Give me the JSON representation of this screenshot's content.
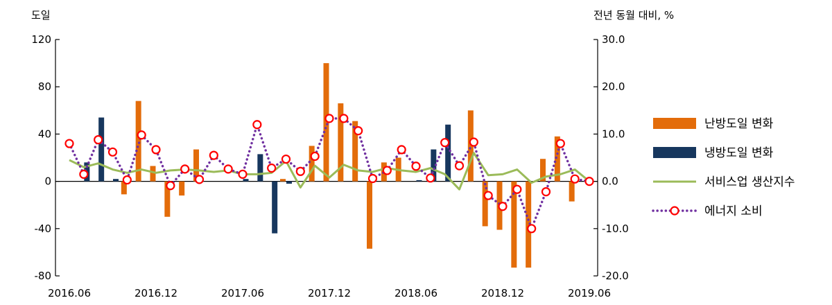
{
  "chart_data": {
    "type": "bar",
    "left_axis_unit": "도일",
    "right_axis_unit": "전년 동월 대비, %",
    "left_ylim": [
      -80,
      120
    ],
    "left_ticks": [
      "120",
      "80",
      "40",
      "0",
      "-40",
      "-80"
    ],
    "left_tick_values": [
      120,
      80,
      40,
      0,
      -40,
      -80
    ],
    "right_ylim": [
      -20,
      30
    ],
    "right_ticks": [
      "30.0",
      "20.0",
      "10.0",
      "0.0",
      "-10.0",
      "-20.0"
    ],
    "right_tick_values": [
      30,
      20,
      10,
      0,
      -10,
      -20
    ],
    "x_labels": [
      "2016.06",
      "2016.12",
      "2017.06",
      "2017.12",
      "2018.06",
      "2018.12",
      "2019.06"
    ],
    "x_label_index": [
      0,
      6,
      12,
      18,
      24,
      30,
      36
    ],
    "categories": [
      "2016.06",
      "2016.07",
      "2016.08",
      "2016.09",
      "2016.10",
      "2016.11",
      "2016.12",
      "2017.01",
      "2017.02",
      "2017.03",
      "2017.04",
      "2017.05",
      "2017.06",
      "2017.07",
      "2017.08",
      "2017.09",
      "2017.10",
      "2017.11",
      "2017.12",
      "2018.01",
      "2018.02",
      "2018.03",
      "2018.04",
      "2018.05",
      "2018.06",
      "2018.07",
      "2018.08",
      "2018.09",
      "2018.10",
      "2018.11",
      "2018.12",
      "2019.01",
      "2019.02",
      "2019.03",
      "2019.04",
      "2019.05",
      "2019.06"
    ],
    "series": [
      {
        "name": "난방도일 변화",
        "axis": "left",
        "kind": "bar",
        "color": "#E36C0A",
        "values": [
          0,
          0,
          0,
          0,
          -11,
          68,
          13,
          -30,
          -12,
          27,
          0,
          0,
          0,
          0,
          0,
          2,
          0,
          30,
          100,
          66,
          51,
          -57,
          16,
          20,
          0,
          0,
          0,
          0,
          60,
          -38,
          -41,
          -73,
          -73,
          19,
          38,
          -17,
          0
        ]
      },
      {
        "name": "냉방도일 변화",
        "axis": "left",
        "kind": "bar",
        "color": "#17375E",
        "values": [
          0,
          16,
          54,
          2,
          0,
          0,
          0,
          0,
          0,
          0,
          0,
          0,
          2,
          23,
          -44,
          -2,
          0,
          0,
          0,
          0,
          0,
          0,
          0,
          0,
          1,
          27,
          48,
          0,
          0,
          0,
          0,
          0,
          0,
          0,
          0,
          0,
          0
        ]
      },
      {
        "name": "서비스업 생산지수",
        "axis": "right",
        "kind": "line",
        "color": "#9BBB59",
        "values": [
          4.5,
          3.0,
          3.8,
          2.5,
          1.8,
          2.5,
          1.8,
          2.3,
          2.5,
          2.3,
          2.0,
          2.3,
          1.5,
          1.5,
          1.8,
          4.3,
          -1.3,
          3.3,
          0.8,
          3.5,
          2.3,
          2.0,
          2.8,
          2.3,
          2.0,
          2.8,
          1.5,
          -1.7,
          6.0,
          1.3,
          1.5,
          2.5,
          -0.3,
          1.0,
          1.5,
          2.5,
          0.0
        ]
      },
      {
        "name": "에너지 소비",
        "axis": "right",
        "kind": "dotted-line-marker",
        "color": "#7030A0",
        "marker_color": "#FF0000",
        "values": [
          8.0,
          1.5,
          8.8,
          6.2,
          0.3,
          9.8,
          6.7,
          -0.9,
          2.6,
          0.4,
          5.5,
          2.6,
          1.5,
          12.0,
          2.8,
          4.7,
          2.1,
          5.3,
          13.3,
          13.3,
          10.7,
          0.6,
          2.3,
          6.7,
          3.2,
          0.7,
          8.2,
          3.3,
          8.3,
          -3.0,
          -5.3,
          -1.7,
          -10.0,
          -2.2,
          8.0,
          0.5,
          0.0
        ]
      }
    ],
    "legend": [
      {
        "label": "난방도일 변화",
        "kind": "bar",
        "color": "#E36C0A"
      },
      {
        "label": "냉방도일 변화",
        "kind": "bar",
        "color": "#17375E"
      },
      {
        "label": "서비스업 생산지수",
        "kind": "line",
        "color": "#9BBB59"
      },
      {
        "label": "에너지 소비",
        "kind": "dotted-line-marker",
        "color": "#7030A0"
      }
    ],
    "legend_position": "right"
  }
}
